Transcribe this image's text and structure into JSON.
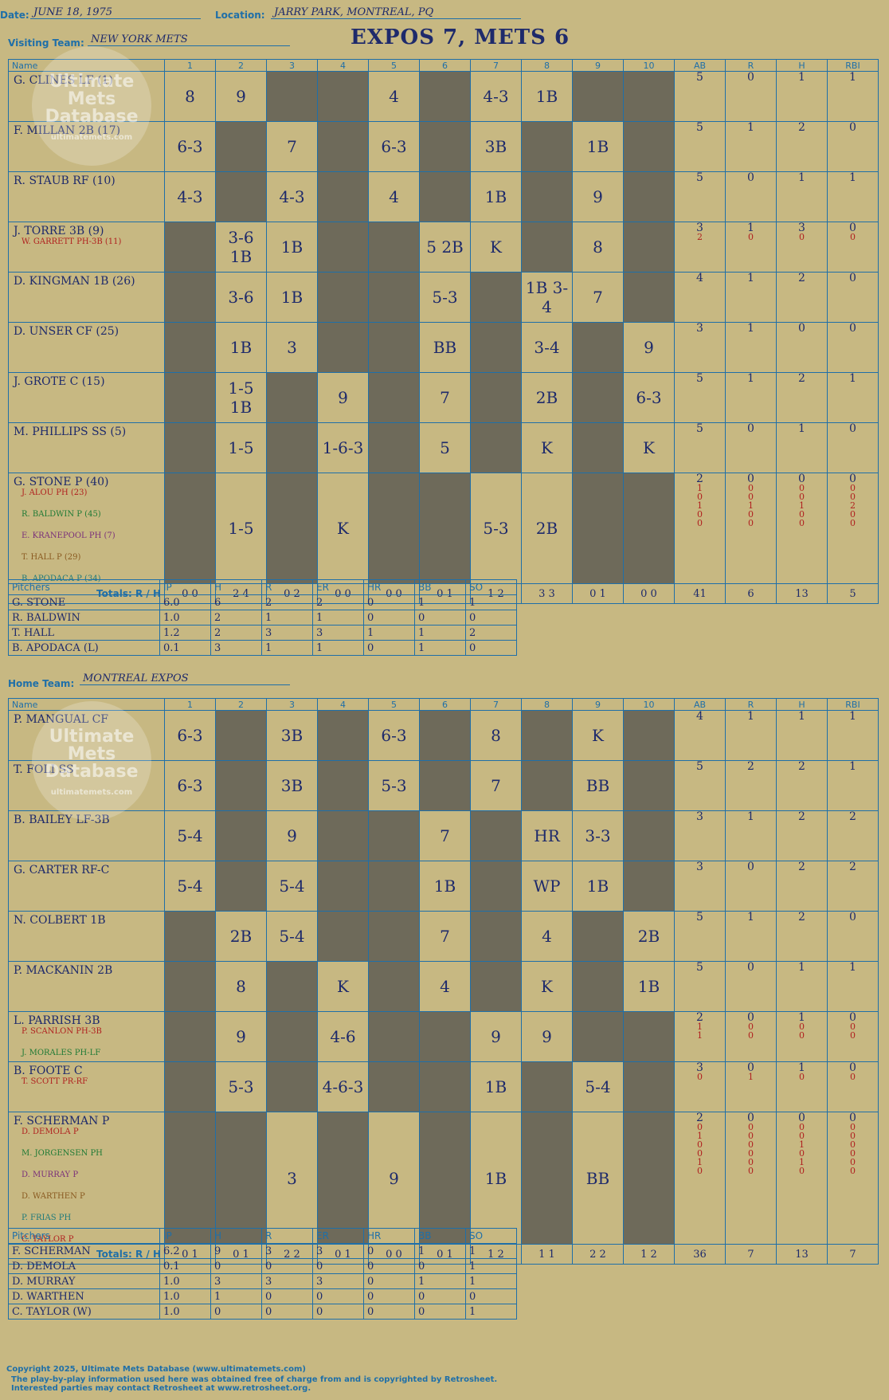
{
  "header": {
    "date_label": "Date:",
    "date": "JUNE 18, 1975",
    "location_label": "Location:",
    "location": "JARRY PARK, MONTREAL, PQ",
    "title": "EXPOS 7, METS 6"
  },
  "watermark": [
    "Ultimate",
    "Mets",
    "Database",
    "ultimatemets.com"
  ],
  "grid_headers": [
    "Name",
    "1",
    "2",
    "3",
    "4",
    "5",
    "6",
    "7",
    "8",
    "9",
    "10",
    "AB",
    "R",
    "H",
    "RBI"
  ],
  "visitors": {
    "team_label": "Visiting Team:",
    "team": "NEW YORK METS",
    "rows": [
      {
        "name": "G. CLINES LF (1)",
        "subs": [],
        "cells": [
          "8",
          "9",
          "",
          "",
          "4",
          "",
          "4-3",
          "1B",
          "",
          ""
        ],
        "stats": [
          [
            "5"
          ],
          [
            "0"
          ],
          [
            "1"
          ],
          [
            "1"
          ]
        ]
      },
      {
        "name": "F. MILLAN 2B (17)",
        "subs": [],
        "cells": [
          "6-3",
          "",
          "7",
          "",
          "6-3",
          "",
          "3B",
          "",
          "1B",
          ""
        ],
        "stats": [
          [
            "5"
          ],
          [
            "1"
          ],
          [
            "2"
          ],
          [
            "0"
          ]
        ]
      },
      {
        "name": "R. STAUB RF (10)",
        "subs": [],
        "cells": [
          "4-3",
          "",
          "4-3",
          "",
          "4",
          "",
          "1B",
          "",
          "9",
          ""
        ],
        "stats": [
          [
            "5"
          ],
          [
            "0"
          ],
          [
            "1"
          ],
          [
            "1"
          ]
        ]
      },
      {
        "name": "J. TORRE 3B (9)",
        "subs": [
          "W. GARRETT PH-3B (11)"
        ],
        "cells": [
          "",
          "3-6 1B",
          "1B",
          "",
          "",
          "5 2B",
          "K",
          "",
          "8",
          ""
        ],
        "stats": [
          [
            "3",
            "2"
          ],
          [
            "1",
            "0"
          ],
          [
            "3",
            "0"
          ],
          [
            "0",
            "0"
          ]
        ]
      },
      {
        "name": "D. KINGMAN 1B (26)",
        "subs": [],
        "cells": [
          "",
          "3-6",
          "1B",
          "",
          "",
          "5-3",
          "",
          "1B 3-4",
          "7",
          ""
        ],
        "stats": [
          [
            "4"
          ],
          [
            "1"
          ],
          [
            "2"
          ],
          [
            "0"
          ]
        ]
      },
      {
        "name": "D. UNSER CF (25)",
        "subs": [],
        "cells": [
          "",
          "1B",
          "3",
          "",
          "",
          "BB",
          "",
          "3-4",
          "",
          "9"
        ],
        "stats": [
          [
            "3"
          ],
          [
            "1"
          ],
          [
            "0"
          ],
          [
            "0"
          ]
        ]
      },
      {
        "name": "J. GROTE C (15)",
        "subs": [],
        "cells": [
          "",
          "1-5 1B",
          "",
          "9",
          "",
          "7",
          "",
          "2B",
          "",
          "6-3"
        ],
        "stats": [
          [
            "5"
          ],
          [
            "1"
          ],
          [
            "2"
          ],
          [
            "1"
          ]
        ]
      },
      {
        "name": "M. PHILLIPS SS (5)",
        "subs": [],
        "cells": [
          "",
          "1-5",
          "",
          "1-6-3",
          "",
          "5",
          "",
          "K",
          "",
          "K"
        ],
        "stats": [
          [
            "5"
          ],
          [
            "0"
          ],
          [
            "1"
          ],
          [
            "0"
          ]
        ]
      },
      {
        "name": "G. STONE P (40)",
        "subs": [
          "J. ALOU PH (23)",
          "R. BALDWIN P (45)",
          "E. KRANEPOOL PH (7)",
          "T. HALL P (29)",
          "B. APODACA P (34)"
        ],
        "cells": [
          "",
          "1-5",
          "",
          "K",
          "",
          "",
          "5-3",
          "2B",
          "",
          ""
        ],
        "stats": [
          [
            "2",
            "1",
            "0",
            "1",
            "0",
            "0"
          ],
          [
            "0",
            "0",
            "0",
            "1",
            "0",
            "0"
          ],
          [
            "0",
            "0",
            "0",
            "1",
            "0",
            "0"
          ],
          [
            "0",
            "0",
            "0",
            "2",
            "0",
            "0"
          ]
        ]
      }
    ],
    "totals_label": "Totals:",
    "rh_label": "R / H",
    "totals": [
      "0 0",
      "2 4",
      "0 2",
      "0 0",
      "0 0",
      "0 1",
      "1 2",
      "3 3",
      "0 1",
      "0 0"
    ],
    "stat_totals": [
      "41",
      "6",
      "13",
      "5"
    ],
    "pitchers_headers": [
      "Pitchers",
      "IP",
      "H",
      "R",
      "ER",
      "HR",
      "BB",
      "SO"
    ],
    "pitchers": [
      [
        "G. STONE",
        "6.0",
        "6",
        "2",
        "2",
        "0",
        "1",
        "1"
      ],
      [
        "R. BALDWIN",
        "1.0",
        "2",
        "1",
        "1",
        "0",
        "0",
        "0"
      ],
      [
        "T. HALL",
        "1.2",
        "2",
        "3",
        "3",
        "1",
        "1",
        "2"
      ],
      [
        "B. APODACA (L)",
        "0.1",
        "3",
        "1",
        "1",
        "0",
        "1",
        "0"
      ]
    ]
  },
  "home": {
    "team_label": "Home Team:",
    "team": "MONTREAL EXPOS",
    "rows": [
      {
        "name": "P. MANGUAL CF",
        "subs": [],
        "cells": [
          "6-3",
          "",
          "3B",
          "",
          "6-3",
          "",
          "8",
          "",
          "K",
          ""
        ],
        "stats": [
          [
            "4"
          ],
          [
            "1"
          ],
          [
            "1"
          ],
          [
            "1"
          ]
        ]
      },
      {
        "name": "T. FOLI SS",
        "subs": [],
        "cells": [
          "6-3",
          "",
          "3B",
          "",
          "5-3",
          "",
          "7",
          "",
          "BB",
          ""
        ],
        "stats": [
          [
            "5"
          ],
          [
            "2"
          ],
          [
            "2"
          ],
          [
            "1"
          ]
        ]
      },
      {
        "name": "B. BAILEY LF-3B",
        "subs": [],
        "cells": [
          "5-4",
          "",
          "9",
          "",
          "",
          "7",
          "",
          "HR",
          "3-3",
          ""
        ],
        "stats": [
          [
            "3"
          ],
          [
            "1"
          ],
          [
            "2"
          ],
          [
            "2"
          ]
        ]
      },
      {
        "name": "G. CARTER RF-C",
        "subs": [],
        "cells": [
          "5-4",
          "",
          "5-4",
          "",
          "",
          "1B",
          "",
          "WP",
          "1B",
          ""
        ],
        "stats": [
          [
            "3"
          ],
          [
            "0"
          ],
          [
            "2"
          ],
          [
            "2"
          ]
        ]
      },
      {
        "name": "N. COLBERT 1B",
        "subs": [],
        "cells": [
          "",
          "2B",
          "5-4",
          "",
          "",
          "7",
          "",
          "4",
          "",
          "2B"
        ],
        "stats": [
          [
            "5"
          ],
          [
            "1"
          ],
          [
            "2"
          ],
          [
            "0"
          ]
        ]
      },
      {
        "name": "P. MACKANIN 2B",
        "subs": [],
        "cells": [
          "",
          "8",
          "",
          "K",
          "",
          "4",
          "",
          "K",
          "",
          "1B"
        ],
        "stats": [
          [
            "5"
          ],
          [
            "0"
          ],
          [
            "1"
          ],
          [
            "1"
          ]
        ]
      },
      {
        "name": "L. PARRISH 3B",
        "subs": [
          "P. SCANLON PH-3B",
          "J. MORALES PH-LF"
        ],
        "cells": [
          "",
          "9",
          "",
          "4-6",
          "",
          "",
          "9",
          "9",
          "",
          ""
        ],
        "stats": [
          [
            "2",
            "1",
            "1"
          ],
          [
            "0",
            "0",
            "0"
          ],
          [
            "1",
            "0",
            "0"
          ],
          [
            "0",
            "0",
            "0"
          ]
        ]
      },
      {
        "name": "B. FOOTE C",
        "subs": [
          "T. SCOTT PR-RF"
        ],
        "cells": [
          "",
          "5-3",
          "",
          "4-6-3",
          "",
          "",
          "1B",
          "",
          "5-4",
          ""
        ],
        "stats": [
          [
            "3",
            "0"
          ],
          [
            "0",
            "1"
          ],
          [
            "1",
            "0"
          ],
          [
            "0",
            "0"
          ]
        ]
      },
      {
        "name": "F. SCHERMAN P",
        "subs": [
          "D. DEMOLA P",
          "M. JORGENSEN PH",
          "D. MURRAY P",
          "D. WARTHEN P",
          "P. FRIAS PH",
          "C. TAYLOR P"
        ],
        "cells": [
          "",
          "",
          "3",
          "",
          "9",
          "",
          "1B",
          "",
          "BB",
          ""
        ],
        "stats": [
          [
            "2",
            "0",
            "1",
            "0",
            "0",
            "1",
            "0"
          ],
          [
            "0",
            "0",
            "0",
            "0",
            "0",
            "0",
            "0"
          ],
          [
            "0",
            "0",
            "0",
            "1",
            "0",
            "1",
            "0"
          ],
          [
            "0",
            "0",
            "0",
            "0",
            "0",
            "0",
            "0"
          ]
        ]
      }
    ],
    "totals_label": "Totals:",
    "rh_label": "R / H",
    "totals": [
      "0 1",
      "0 1",
      "2 2",
      "0 1",
      "0 0",
      "0 1",
      "1 2",
      "1 1",
      "2 2",
      "1 2"
    ],
    "stat_totals": [
      "36",
      "7",
      "13",
      "7"
    ],
    "pitchers_headers": [
      "Pitchers",
      "IP",
      "H",
      "R",
      "ER",
      "HR",
      "BB",
      "SO"
    ],
    "pitchers": [
      [
        "F. SCHERMAN",
        "6.2",
        "9",
        "3",
        "3",
        "0",
        "1",
        "1"
      ],
      [
        "D. DEMOLA",
        "0.1",
        "0",
        "0",
        "0",
        "0",
        "0",
        "1"
      ],
      [
        "D. MURRAY",
        "1.0",
        "3",
        "3",
        "3",
        "0",
        "1",
        "1"
      ],
      [
        "D. WARTHEN",
        "1.0",
        "1",
        "0",
        "0",
        "0",
        "0",
        "0"
      ],
      [
        "C. TAYLOR (W)",
        "1.0",
        "0",
        "0",
        "0",
        "0",
        "0",
        "1"
      ]
    ]
  },
  "footer": {
    "line1": "Copyright 2025, Ultimate Mets Database (www.ultimatemets.com)",
    "line2": "The play-by-play information used here was obtained free of charge from and is copyrighted by Retrosheet.",
    "line3": "Interested parties may contact Retrosheet at www.retrosheet.org."
  }
}
